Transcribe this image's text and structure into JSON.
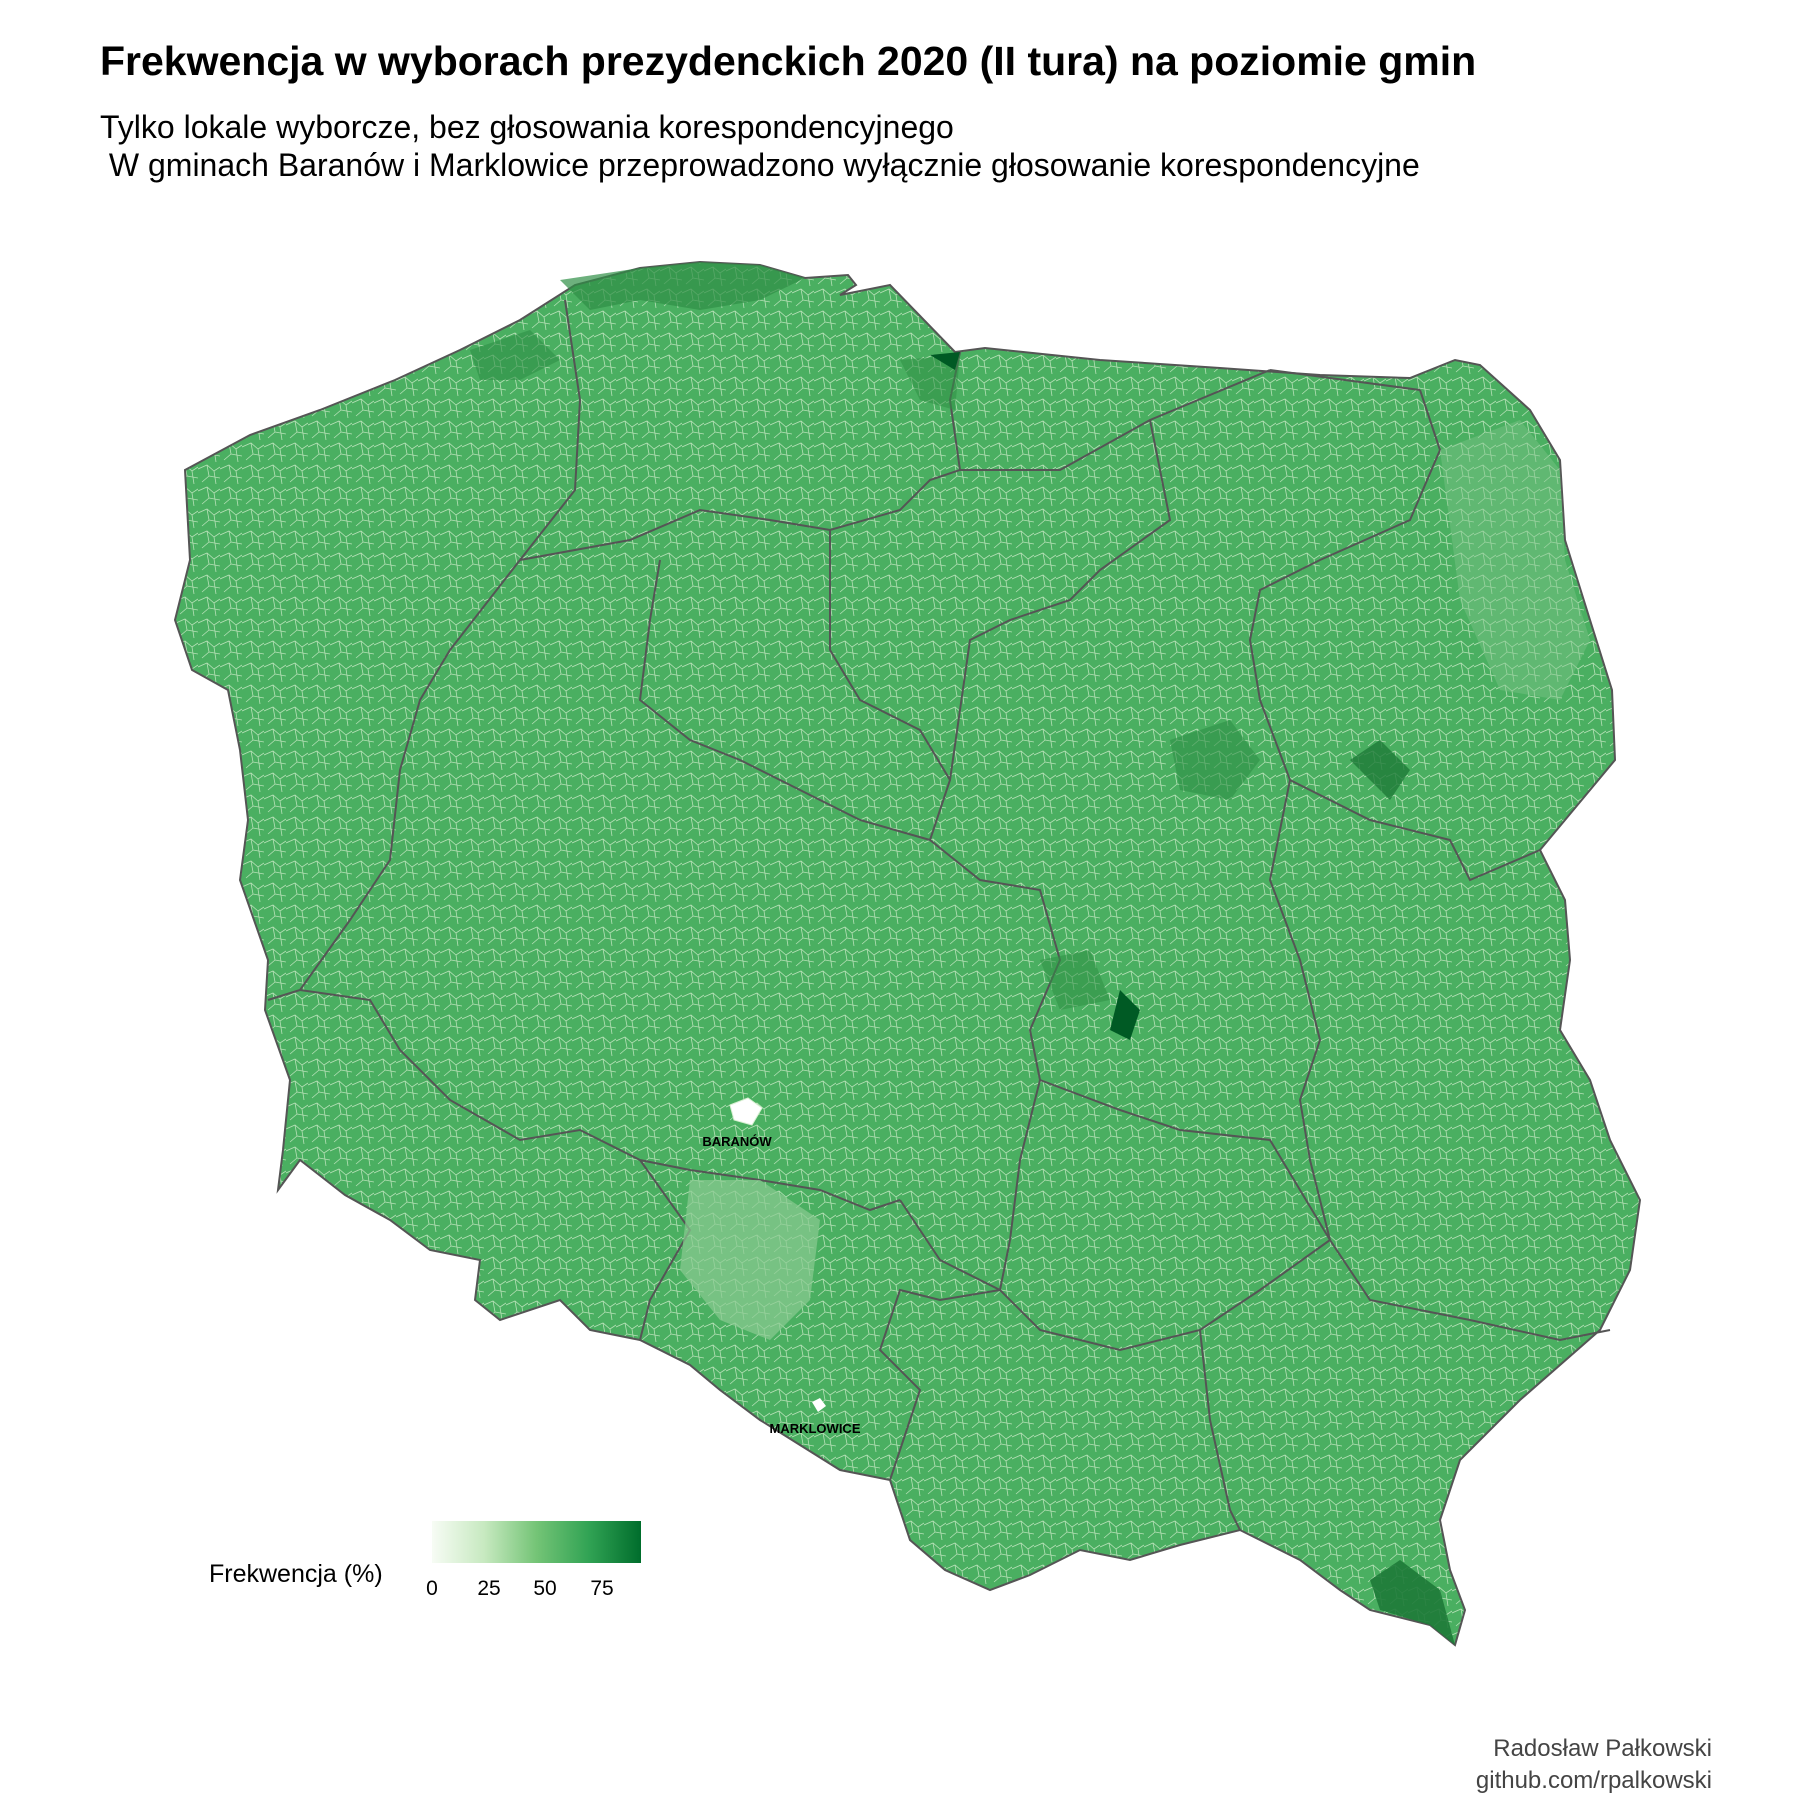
{
  "header": {
    "title": "Frekwencja w wyborach prezydenckich 2020 (II tura) na poziomie gmin",
    "subtitle": "Tylko lokale wyborcze, bez głosowania korespondencyjnego\n W gminach Baranów i Marklowice przeprowadzono wyłącznie głosowanie korespondencyjne"
  },
  "map": {
    "region": "Polska",
    "fill_color": "#4aaf61",
    "border_color": "#555555",
    "labels": {
      "baranow": "BARANÓW",
      "marklowice": "MARKLOWICE"
    }
  },
  "legend": {
    "title": "Frekwencja (%)",
    "ticks": [
      "0",
      "25",
      "50",
      "75"
    ],
    "colors": [
      "#f7fcf5",
      "#c7e9c0",
      "#74c476",
      "#31a354",
      "#006d2c"
    ]
  },
  "caption": {
    "author": "Radosław Pałkowski",
    "url": "github.com/rpalkowski"
  }
}
